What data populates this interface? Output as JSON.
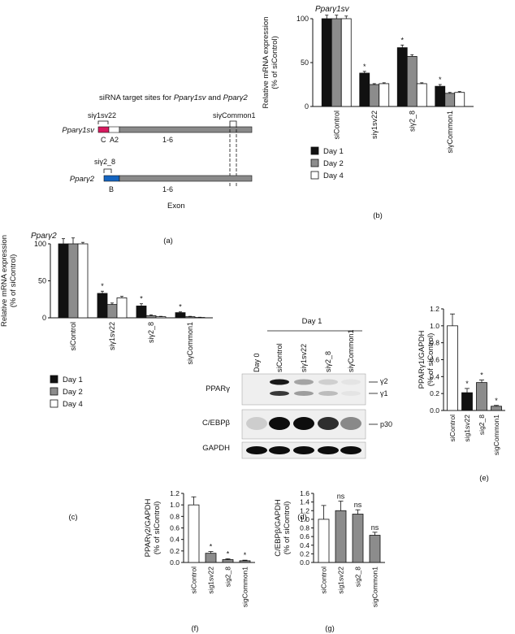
{
  "colors": {
    "day1": "#111111",
    "day2": "#8c8c8c",
    "day4": "#ffffff",
    "exon_c": "#d81b60",
    "exon_b": "#1565c0",
    "exon_gray": "#8a8a8a",
    "gel_bg": "#efefef"
  },
  "panel_labels": [
    "(a)",
    "(b)",
    "(c)",
    "(d)",
    "(e)",
    "(f)",
    "(g)"
  ],
  "diagram": {
    "title_prefix": "siRNA target sites for ",
    "title_g1": "Pparγ1sv",
    "title_and": " and ",
    "title_g2": "Pparγ2",
    "top_row_name": "Pparγ1sv",
    "bottom_row_name": "Pparγ2",
    "si_labels": [
      "siγ1sv22",
      "siγCommon1",
      "siγ2_8"
    ],
    "exon_labels_top": [
      "C",
      "A2",
      "1-6"
    ],
    "exon_labels_bottom": [
      "B",
      "1-6"
    ],
    "exon_caption": "Exon"
  },
  "chart_data": [
    {
      "id": "b",
      "type": "bar",
      "title": "Pparγ1sv",
      "ylabel": [
        "Relative mRNA expression",
        "(% of siControl)"
      ],
      "ylim": [
        0,
        100
      ],
      "yticks": [
        0,
        50,
        100
      ],
      "categories": [
        "siControl",
        "siγ1sv22",
        "siγ2_8",
        "siγCommon1"
      ],
      "series": [
        {
          "name": "Day 1",
          "color": "#111111",
          "values": [
            100,
            38,
            67,
            23
          ],
          "errors": [
            4,
            2,
            3,
            2
          ]
        },
        {
          "name": "Day 2",
          "color": "#8c8c8c",
          "values": [
            100,
            25,
            57,
            15
          ],
          "errors": [
            4,
            1,
            2,
            1
          ]
        },
        {
          "name": "Day 4",
          "color": "#ffffff",
          "values": [
            100,
            26,
            26,
            16
          ],
          "errors": [
            3,
            1,
            1,
            1
          ]
        }
      ],
      "significance": [
        "",
        "*",
        "*",
        "*"
      ],
      "legend": [
        "Day 1",
        "Day 2",
        "Day 4"
      ]
    },
    {
      "id": "c",
      "type": "bar",
      "title": "Pparγ2",
      "ylabel": [
        "Relative mRNA expression",
        "(% of siControl)"
      ],
      "ylim": [
        0,
        100
      ],
      "yticks": [
        0,
        50,
        100
      ],
      "categories": [
        "siControl",
        "siγ1sv22",
        "siγ2_8",
        "siγCommon1"
      ],
      "series": [
        {
          "name": "Day 1",
          "color": "#111111",
          "values": [
            100,
            33,
            16,
            7
          ],
          "errors": [
            7,
            3,
            3,
            1
          ]
        },
        {
          "name": "Day 2",
          "color": "#8c8c8c",
          "values": [
            100,
            18,
            3,
            1.5
          ],
          "errors": [
            8,
            2,
            1,
            0.5
          ]
        },
        {
          "name": "Day 4",
          "color": "#ffffff",
          "values": [
            100,
            27,
            1.5,
            0.5
          ],
          "errors": [
            2,
            2,
            0.5,
            0.3
          ]
        }
      ],
      "significance": [
        "",
        "*",
        "*",
        "*"
      ],
      "legend": [
        "Day 1",
        "Day 2",
        "Day 4"
      ]
    },
    {
      "id": "e",
      "type": "bar",
      "ylabel": [
        "PPARγ1/GAPDH",
        "(% of siControl)"
      ],
      "ylim": [
        0,
        1.2
      ],
      "yticks": [
        0.0,
        0.2,
        0.4,
        0.6,
        0.8,
        1.0,
        1.2
      ],
      "categories": [
        "siControl",
        "sig1sv22",
        "sig2_8",
        "sigCommon1"
      ],
      "values": [
        1.0,
        0.21,
        0.33,
        0.05
      ],
      "errors": [
        0.14,
        0.05,
        0.03,
        0.01
      ],
      "fills": [
        "#ffffff",
        "#111111",
        "#8c8c8c",
        "#8c8c8c"
      ],
      "significance": [
        "",
        "*",
        "*",
        "*"
      ]
    },
    {
      "id": "f",
      "type": "bar",
      "ylabel": [
        "PPARγ2/GAPDH",
        "(% of siControl)"
      ],
      "ylim": [
        0,
        1.2
      ],
      "yticks": [
        0.0,
        0.2,
        0.4,
        0.6,
        0.8,
        1.0,
        1.2
      ],
      "categories": [
        "siControl",
        "sig1sv22",
        "sig2_8",
        "sigCommon1"
      ],
      "values": [
        1.0,
        0.16,
        0.05,
        0.03
      ],
      "errors": [
        0.14,
        0.03,
        0.015,
        0.01
      ],
      "fills": [
        "#ffffff",
        "#8c8c8c",
        "#8c8c8c",
        "#8c8c8c"
      ],
      "significance": [
        "",
        "*",
        "*",
        "*"
      ]
    },
    {
      "id": "g",
      "type": "bar",
      "ylabel": [
        "C/EBPβ/GAPDH",
        "(% of siControl)"
      ],
      "ylim": [
        0,
        1.6
      ],
      "yticks": [
        0.0,
        0.2,
        0.4,
        0.6,
        0.8,
        1.0,
        1.2,
        1.4,
        1.6
      ],
      "categories": [
        "siControl",
        "sig1sv22",
        "sig2_8",
        "sigCommon1"
      ],
      "values": [
        1.0,
        1.2,
        1.12,
        0.63
      ],
      "errors": [
        0.32,
        0.22,
        0.1,
        0.07
      ],
      "fills": [
        "#ffffff",
        "#8c8c8c",
        "#8c8c8c",
        "#8c8c8c"
      ],
      "significance": [
        "",
        "ns",
        "ns",
        "ns"
      ]
    }
  ],
  "blot": {
    "day_header": "Day 1",
    "lanes": [
      "Day 0",
      "siControl",
      "siγ1sv22",
      "siγ2_8",
      "siγCommon1"
    ],
    "rows": [
      "PPARγ",
      "C/EBPβ",
      "GAPDH"
    ],
    "markers": [
      "γ2",
      "γ1",
      "p30"
    ],
    "band_intensity": {
      "gamma2": [
        0.0,
        1.0,
        0.35,
        0.15,
        0.05
      ],
      "gamma1": [
        0.0,
        0.9,
        0.4,
        0.25,
        0.05
      ],
      "cebpb": [
        0.15,
        1.0,
        1.0,
        0.85,
        0.45
      ],
      "gapdh": [
        1.0,
        1.0,
        1.0,
        1.0,
        1.0
      ]
    }
  }
}
